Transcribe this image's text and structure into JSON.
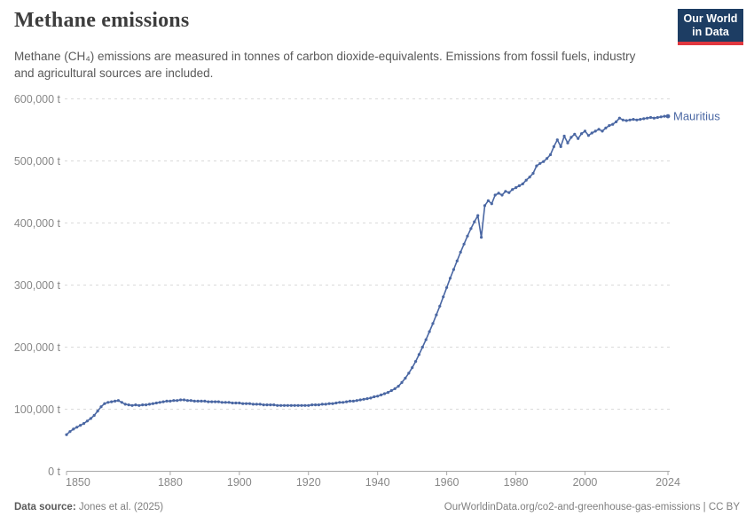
{
  "header": {
    "title": "Methane emissions",
    "subtitle": "Methane (CH₄) emissions are measured in tonnes of carbon dioxide-equivalents. Emissions from fossil fuels, industry and agricultural sources are included.",
    "logo": {
      "line1": "Our World",
      "line2": "in Data"
    }
  },
  "footer": {
    "source_label": "Data source:",
    "source_value": "Jones et al. (2025)",
    "url": "OurWorldinData.org/co2-and-greenhouse-gas-emissions | CC BY"
  },
  "colors": {
    "line": "#4A67A3",
    "logo_navy": "#1D3D63",
    "logo_red": "#E0373F",
    "gridline": "#DADADA",
    "axis": "#A8A8A8",
    "tick_text": "#888888"
  },
  "chart_data": {
    "type": "line",
    "title": "Methane emissions",
    "xlabel": "",
    "ylabel": "",
    "unit": "t",
    "grid": true,
    "xlim": [
      1850,
      2024
    ],
    "ylim": [
      0,
      600000
    ],
    "x_ticks": [
      {
        "value": 1850,
        "label": "1850"
      },
      {
        "value": 1880,
        "label": "1880"
      },
      {
        "value": 1900,
        "label": "1900"
      },
      {
        "value": 1920,
        "label": "1920"
      },
      {
        "value": 1940,
        "label": "1940"
      },
      {
        "value": 1960,
        "label": "1960"
      },
      {
        "value": 1980,
        "label": "1980"
      },
      {
        "value": 2000,
        "label": "2000"
      },
      {
        "value": 2024,
        "label": "2024"
      }
    ],
    "y_ticks": [
      {
        "value": 0,
        "label": "0 t"
      },
      {
        "value": 100000,
        "label": "100,000 t"
      },
      {
        "value": 200000,
        "label": "200,000 t"
      },
      {
        "value": 300000,
        "label": "300,000 t"
      },
      {
        "value": 400000,
        "label": "400,000 t"
      },
      {
        "value": 500000,
        "label": "500,000 t"
      },
      {
        "value": 600000,
        "label": "600,000 t"
      }
    ],
    "series": [
      {
        "name": "Mauritius",
        "color": "#4A67A3",
        "year_start": 1850,
        "year_end": 2024,
        "values": [
          59000,
          64000,
          68000,
          71000,
          74000,
          77000,
          81000,
          85000,
          90000,
          97000,
          104000,
          109000,
          111000,
          112000,
          113000,
          114000,
          111000,
          108000,
          107000,
          106000,
          107000,
          106000,
          107000,
          107000,
          108000,
          109000,
          110000,
          111000,
          112000,
          113000,
          113000,
          114000,
          114000,
          115000,
          115000,
          114000,
          114000,
          113000,
          113000,
          113000,
          113000,
          112000,
          112000,
          112000,
          112000,
          111000,
          111000,
          111000,
          110000,
          110000,
          110000,
          109000,
          109000,
          109000,
          108000,
          108000,
          108000,
          107000,
          107000,
          107000,
          107000,
          106000,
          106000,
          106000,
          106000,
          106000,
          106000,
          106000,
          106000,
          106000,
          106000,
          107000,
          107000,
          107000,
          108000,
          108000,
          109000,
          109000,
          110000,
          111000,
          111000,
          112000,
          113000,
          113000,
          114000,
          115000,
          116000,
          117000,
          118000,
          120000,
          121000,
          123000,
          125000,
          127000,
          130000,
          133000,
          137000,
          143000,
          150000,
          158000,
          167000,
          177000,
          188000,
          200000,
          212000,
          225000,
          238000,
          252000,
          266000,
          281000,
          296000,
          311000,
          325000,
          339000,
          353000,
          366000,
          379000,
          391000,
          402000,
          412000,
          377000,
          428000,
          436000,
          431000,
          445000,
          448000,
          445000,
          451000,
          449000,
          454000,
          457000,
          460000,
          463000,
          469000,
          474000,
          480000,
          492000,
          496000,
          499000,
          504000,
          510000,
          523000,
          534000,
          523000,
          540000,
          529000,
          538000,
          543000,
          536000,
          544000,
          548000,
          541000,
          545000,
          548000,
          551000,
          548000,
          553000,
          557000,
          559000,
          563000,
          569000,
          566000,
          565000,
          566000,
          567000,
          566000,
          567000,
          568000,
          569000,
          570000,
          569000,
          570000,
          571000,
          572000,
          572000
        ]
      }
    ],
    "legend_position": "end-of-line-label"
  }
}
